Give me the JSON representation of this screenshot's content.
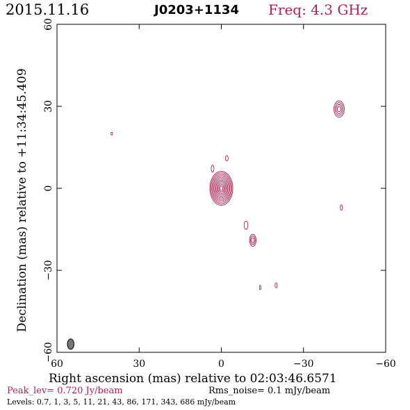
{
  "header": {
    "date": "2015.11.16",
    "source": "J0203+1134",
    "freq": "Freq: 4.3 GHz"
  },
  "footer": {
    "peak": "Peak_lev=  0.720 Jy/beam",
    "rms": "Rms_noise=  0.1 mJy/beam",
    "levels": "Levels: 0.7,   1,   3,   5,  11,  21,  43,  86, 171, 343, 686 mJy/beam"
  },
  "colors": {
    "contour": "#b22050",
    "beam": "#777777"
  },
  "chart_data": {
    "type": "contour",
    "xlabel": "Right ascension (mas) relative to 02:03:46.6571",
    "ylabel": "Declination (mas) relative to +11:34:45.409",
    "xlim": [
      60,
      -60
    ],
    "ylim": [
      -60,
      60
    ],
    "xticks": [
      60,
      30,
      0,
      -30,
      -60
    ],
    "yticks": [
      -60,
      -30,
      0,
      30,
      60
    ],
    "xtick_labels": [
      "60",
      "30",
      "0",
      "−30",
      "−60"
    ],
    "ytick_labels": [
      "−60",
      "−30",
      "0",
      "30",
      "60"
    ],
    "contour_levels_mJy": [
      0.7,
      1,
      3,
      5,
      11,
      21,
      43,
      86,
      171,
      343,
      686
    ],
    "beam": {
      "x": 55,
      "y": -57,
      "major": 3.8,
      "minor": 2.4,
      "pa": 0
    },
    "components": [
      {
        "x": 0,
        "y": 0,
        "rx": 4.2,
        "ry": 6.2,
        "levels": 11
      },
      {
        "x": -43,
        "y": 29,
        "rx": 1.9,
        "ry": 3.0,
        "levels": 4
      },
      {
        "x": -11.5,
        "y": -19,
        "rx": 1.2,
        "ry": 2.2,
        "levels": 3
      },
      {
        "x": -9,
        "y": -13.5,
        "rx": 0.7,
        "ry": 1.5,
        "levels": 1
      },
      {
        "x": -2,
        "y": 11,
        "rx": 0.5,
        "ry": 1.0,
        "levels": 1
      },
      {
        "x": 3.2,
        "y": 7.2,
        "rx": 0.5,
        "ry": 1.3,
        "levels": 1
      },
      {
        "x": 40,
        "y": 20,
        "rx": 0.3,
        "ry": 0.5,
        "levels": 1
      },
      {
        "x": -43.8,
        "y": -7,
        "rx": 0.4,
        "ry": 1.0,
        "levels": 1
      },
      {
        "x": -14.2,
        "y": -36.3,
        "rx": 0.3,
        "ry": 0.8,
        "levels": 1
      },
      {
        "x": -20,
        "y": -35.5,
        "rx": 0.4,
        "ry": 0.9,
        "levels": 1
      }
    ]
  }
}
